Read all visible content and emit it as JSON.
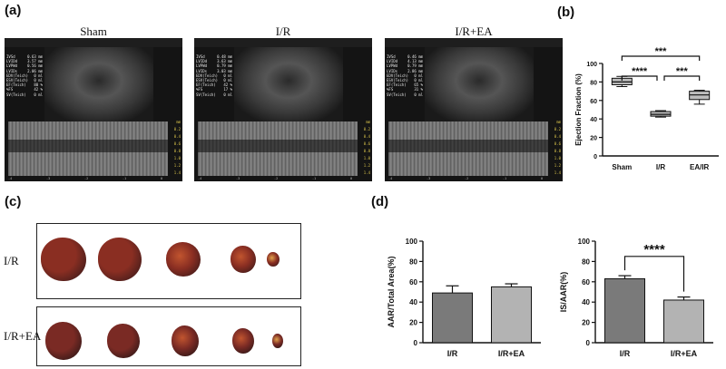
{
  "panels": {
    "a": "(a)",
    "b": "(b)",
    "c": "(c)",
    "d": "(d)"
  },
  "ultrasound": [
    {
      "title": "Sham",
      "measurements": [
        {
          "label": "IVSd",
          "value": "0.63 mm"
        },
        {
          "label": "LVIDd",
          "value": "3.57 mm"
        },
        {
          "label": "LVPWd",
          "value": "0.56 mm"
        },
        {
          "label": "LVIDs",
          "value": "2.06 mm"
        },
        {
          "label": "EDV(Teich)",
          "value": "0 ml"
        },
        {
          "label": "ESV(Teich)",
          "value": "0 ml"
        },
        {
          "label": "EF(Teich)",
          "value": "80 %"
        },
        {
          "label": "%FS",
          "value": "42 %"
        },
        {
          "label": "SV(Teich)",
          "value": "0 ml"
        }
      ]
    },
    {
      "title": "I/R",
      "measurements": [
        {
          "label": "IVSd",
          "value": "0.48 mm"
        },
        {
          "label": "LVIDd",
          "value": "3.63 mm"
        },
        {
          "label": "LVPWd",
          "value": "0.79 mm"
        },
        {
          "label": "LVIDs",
          "value": "3.03 mm"
        },
        {
          "label": "EDV(Teich)",
          "value": "0 ml"
        },
        {
          "label": "ESV(Teich)",
          "value": "0 ml"
        },
        {
          "label": "EF(Teich)",
          "value": "42 %"
        },
        {
          "label": "%FS",
          "value": "17 %"
        },
        {
          "label": "SV(Teich)",
          "value": "0 ml"
        }
      ]
    },
    {
      "title": "I/R+EA",
      "measurements": [
        {
          "label": "IVSd",
          "value": "0.46 mm"
        },
        {
          "label": "LVIDd",
          "value": "4.13 mm"
        },
        {
          "label": "LVPWd",
          "value": "0.79 mm"
        },
        {
          "label": "LVIDs",
          "value": "2.86 mm"
        },
        {
          "label": "EDV(Teich)",
          "value": "0 ml"
        },
        {
          "label": "ESV(Teich)",
          "value": "0 ml"
        },
        {
          "label": "EF(Teich)",
          "value": "65 %"
        },
        {
          "label": "%FS",
          "value": "31 %"
        },
        {
          "label": "SV(Teich)",
          "value": "0 ml"
        }
      ]
    }
  ],
  "ultrasound_scale": [
    "mm",
    "0.2",
    "0.4",
    "0.6",
    "0.8",
    "1.0",
    "1.2",
    "1.4"
  ],
  "ultrasound_time_ticks": [
    "-4",
    "-3",
    "-2",
    "-1",
    "0"
  ],
  "heart_rows": [
    {
      "label": "I/R",
      "color_main": "#8a2e22",
      "color_dark": "#3b1a1a"
    },
    {
      "label": "I/R+EA",
      "color_main": "#7a2a24",
      "color_dark": "#2a1616"
    }
  ],
  "chart_data": [
    {
      "type": "box",
      "panel": "b",
      "ylabel": "Ejection Fraction (%)",
      "ylim": [
        0,
        100
      ],
      "yticks": [
        0,
        20,
        40,
        60,
        80,
        100
      ],
      "categories": [
        "Sham",
        "I/R",
        "EA/IR"
      ],
      "boxes": [
        {
          "min": 75,
          "q1": 77,
          "median": 80,
          "q3": 84,
          "max": 86
        },
        {
          "min": 42,
          "q1": 43,
          "median": 45,
          "q3": 48,
          "max": 49
        },
        {
          "min": 56,
          "q1": 61,
          "median": 66,
          "q3": 70,
          "max": 71
        }
      ],
      "significance": [
        {
          "from": 0,
          "to": 2,
          "label": "***"
        },
        {
          "from": 0,
          "to": 1,
          "label": "****"
        },
        {
          "from": 1,
          "to": 2,
          "label": "***"
        }
      ],
      "color": "#bdbdbd"
    },
    {
      "type": "bar",
      "panel": "d-left",
      "ylabel": "AAR/Total Area(%)",
      "ylim": [
        0,
        100
      ],
      "yticks": [
        0,
        20,
        40,
        60,
        80,
        100
      ],
      "categories": [
        "I/R",
        "I/R+EA"
      ],
      "values": [
        49,
        55
      ],
      "errors": [
        7,
        3
      ],
      "colors": [
        "#7a7a7a",
        "#b3b3b3"
      ]
    },
    {
      "type": "bar",
      "panel": "d-right",
      "ylabel": "IS/AAR(%)",
      "ylim": [
        0,
        100
      ],
      "yticks": [
        0,
        20,
        40,
        60,
        80,
        100
      ],
      "categories": [
        "I/R",
        "I/R+EA"
      ],
      "values": [
        63,
        42
      ],
      "errors": [
        3,
        3
      ],
      "colors": [
        "#7a7a7a",
        "#b3b3b3"
      ],
      "significance": [
        {
          "from": 0,
          "to": 1,
          "label": "****"
        }
      ]
    }
  ]
}
